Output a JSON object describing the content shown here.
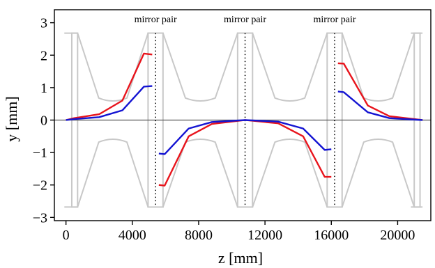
{
  "chart_data": {
    "type": "line",
    "title": "",
    "xlabel": "z [mm]",
    "ylabel": "y [mm]",
    "xlim": [
      -700,
      22000
    ],
    "ylim": [
      -3.1,
      3.4
    ],
    "xticks": [
      0,
      4000,
      8000,
      12000,
      16000,
      20000
    ],
    "yticks": [
      3,
      2,
      1,
      0,
      -1,
      -2,
      -3
    ],
    "grid": false,
    "legend": "none",
    "annotations": [
      {
        "text": "mirror pair",
        "x": 5400,
        "y": 3.1
      },
      {
        "text": "mirror pair",
        "x": 10800,
        "y": 3.1
      },
      {
        "text": "mirror pair",
        "x": 16200,
        "y": 3.1
      }
    ],
    "mirror_positions": [
      5400,
      10800,
      16200
    ],
    "series": [
      {
        "color": "#e8141c",
        "segments": [
          {
            "x": [
              0,
              500,
              2000,
              3400,
              4700,
              5200
            ],
            "y": [
              0,
              0.06,
              0.18,
              0.6,
              2.05,
              2.02
            ]
          },
          {
            "x": [
              5600,
              5950,
              7400,
              8800,
              10800,
              12800,
              14300,
              15600,
              16000
            ],
            "y": [
              -2.0,
              -2.02,
              -0.5,
              -0.12,
              0,
              -0.1,
              -0.5,
              -1.75,
              -1.75
            ]
          },
          {
            "x": [
              16400,
              16750,
              18200,
              19500,
              21500
            ],
            "y": [
              1.75,
              1.74,
              0.45,
              0.12,
              0
            ]
          }
        ]
      },
      {
        "color": "#1414d2",
        "segments": [
          {
            "x": [
              0,
              500,
              2000,
              3400,
              4700,
              5200
            ],
            "y": [
              0,
              0.03,
              0.09,
              0.3,
              1.03,
              1.05
            ]
          },
          {
            "x": [
              5600,
              5950,
              7400,
              8800,
              10800,
              12800,
              14300,
              15600,
              16000
            ],
            "y": [
              -1.03,
              -1.05,
              -0.26,
              -0.06,
              0,
              -0.05,
              -0.26,
              -0.92,
              -0.9
            ]
          },
          {
            "x": [
              16400,
              16750,
              18200,
              19500,
              21500
            ],
            "y": [
              0.88,
              0.86,
              0.24,
              0.06,
              0
            ]
          }
        ]
      }
    ],
    "colors": {
      "structure": "#c8c8c8",
      "axis": "#000000",
      "baseline": "#555555"
    }
  }
}
